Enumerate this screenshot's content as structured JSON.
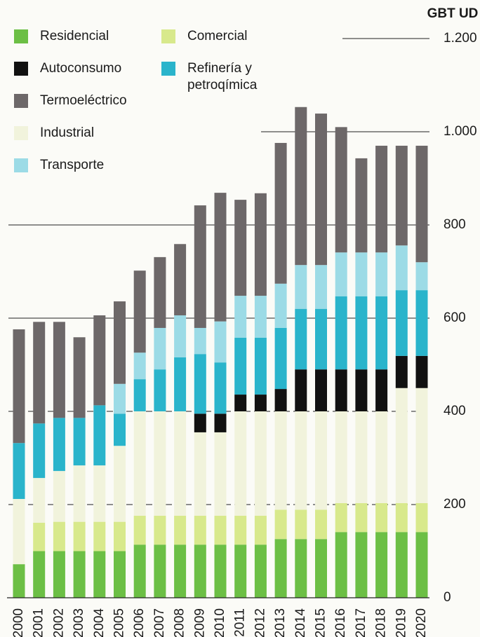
{
  "chart_data": {
    "type": "stacked-bar",
    "y_axis_label": "GBT UD",
    "categories": [
      "2000",
      "2001",
      "2002",
      "2003",
      "2004",
      "2005",
      "2006",
      "2007",
      "2008",
      "2009",
      "2010",
      "2011",
      "2012",
      "2013",
      "2014",
      "2015",
      "2016",
      "2017",
      "2018",
      "2019",
      "2020"
    ],
    "series": [
      {
        "name": "Residencial",
        "color": "#6cbf45",
        "values": [
          72,
          100,
          100,
          100,
          100,
          100,
          114,
          114,
          114,
          114,
          114,
          114,
          114,
          126,
          126,
          126,
          141,
          141,
          141,
          141,
          141
        ]
      },
      {
        "name": "Comercial",
        "color": "#d8e98c",
        "values": [
          0,
          61,
          63,
          63,
          63,
          63,
          62,
          62,
          62,
          62,
          62,
          62,
          62,
          63,
          63,
          63,
          62,
          62,
          62,
          62,
          62
        ]
      },
      {
        "name": "Industrial",
        "color": "#f1f3dc",
        "values": [
          140,
          96,
          109,
          121,
          121,
          163,
          224,
          224,
          224,
          179,
          179,
          224,
          224,
          211,
          211,
          211,
          197,
          197,
          197,
          247,
          247
        ]
      },
      {
        "name": "Autoconsumo",
        "color": "#111111",
        "values": [
          0,
          0,
          0,
          0,
          0,
          0,
          0,
          0,
          0,
          40,
          40,
          36,
          36,
          48,
          90,
          90,
          90,
          90,
          90,
          69,
          69
        ]
      },
      {
        "name": "Refinería y petroqímica",
        "color": "#2ab4cb",
        "values": [
          120,
          117,
          114,
          102,
          129,
          69,
          69,
          90,
          116,
          128,
          110,
          122,
          122,
          131,
          130,
          130,
          157,
          157,
          157,
          141,
          141
        ]
      },
      {
        "name": "Transporte",
        "color": "#9cdbe6",
        "values": [
          0,
          0,
          0,
          0,
          0,
          64,
          57,
          89,
          90,
          56,
          88,
          90,
          90,
          95,
          94,
          94,
          94,
          94,
          94,
          96,
          60
        ]
      },
      {
        "name": "Termoeléctrico",
        "color": "#6d6869",
        "values": [
          244,
          218,
          206,
          173,
          193,
          177,
          176,
          152,
          153,
          263,
          276,
          206,
          220,
          302,
          339,
          325,
          269,
          202,
          229,
          214,
          250
        ]
      }
    ],
    "ylim": [
      0,
      1200
    ],
    "yticks": [
      0,
      200,
      400,
      600,
      800,
      {
        "value": 1000,
        "label": "1.000"
      },
      {
        "value": 1200,
        "label": "1.200"
      }
    ],
    "grid": true
  }
}
